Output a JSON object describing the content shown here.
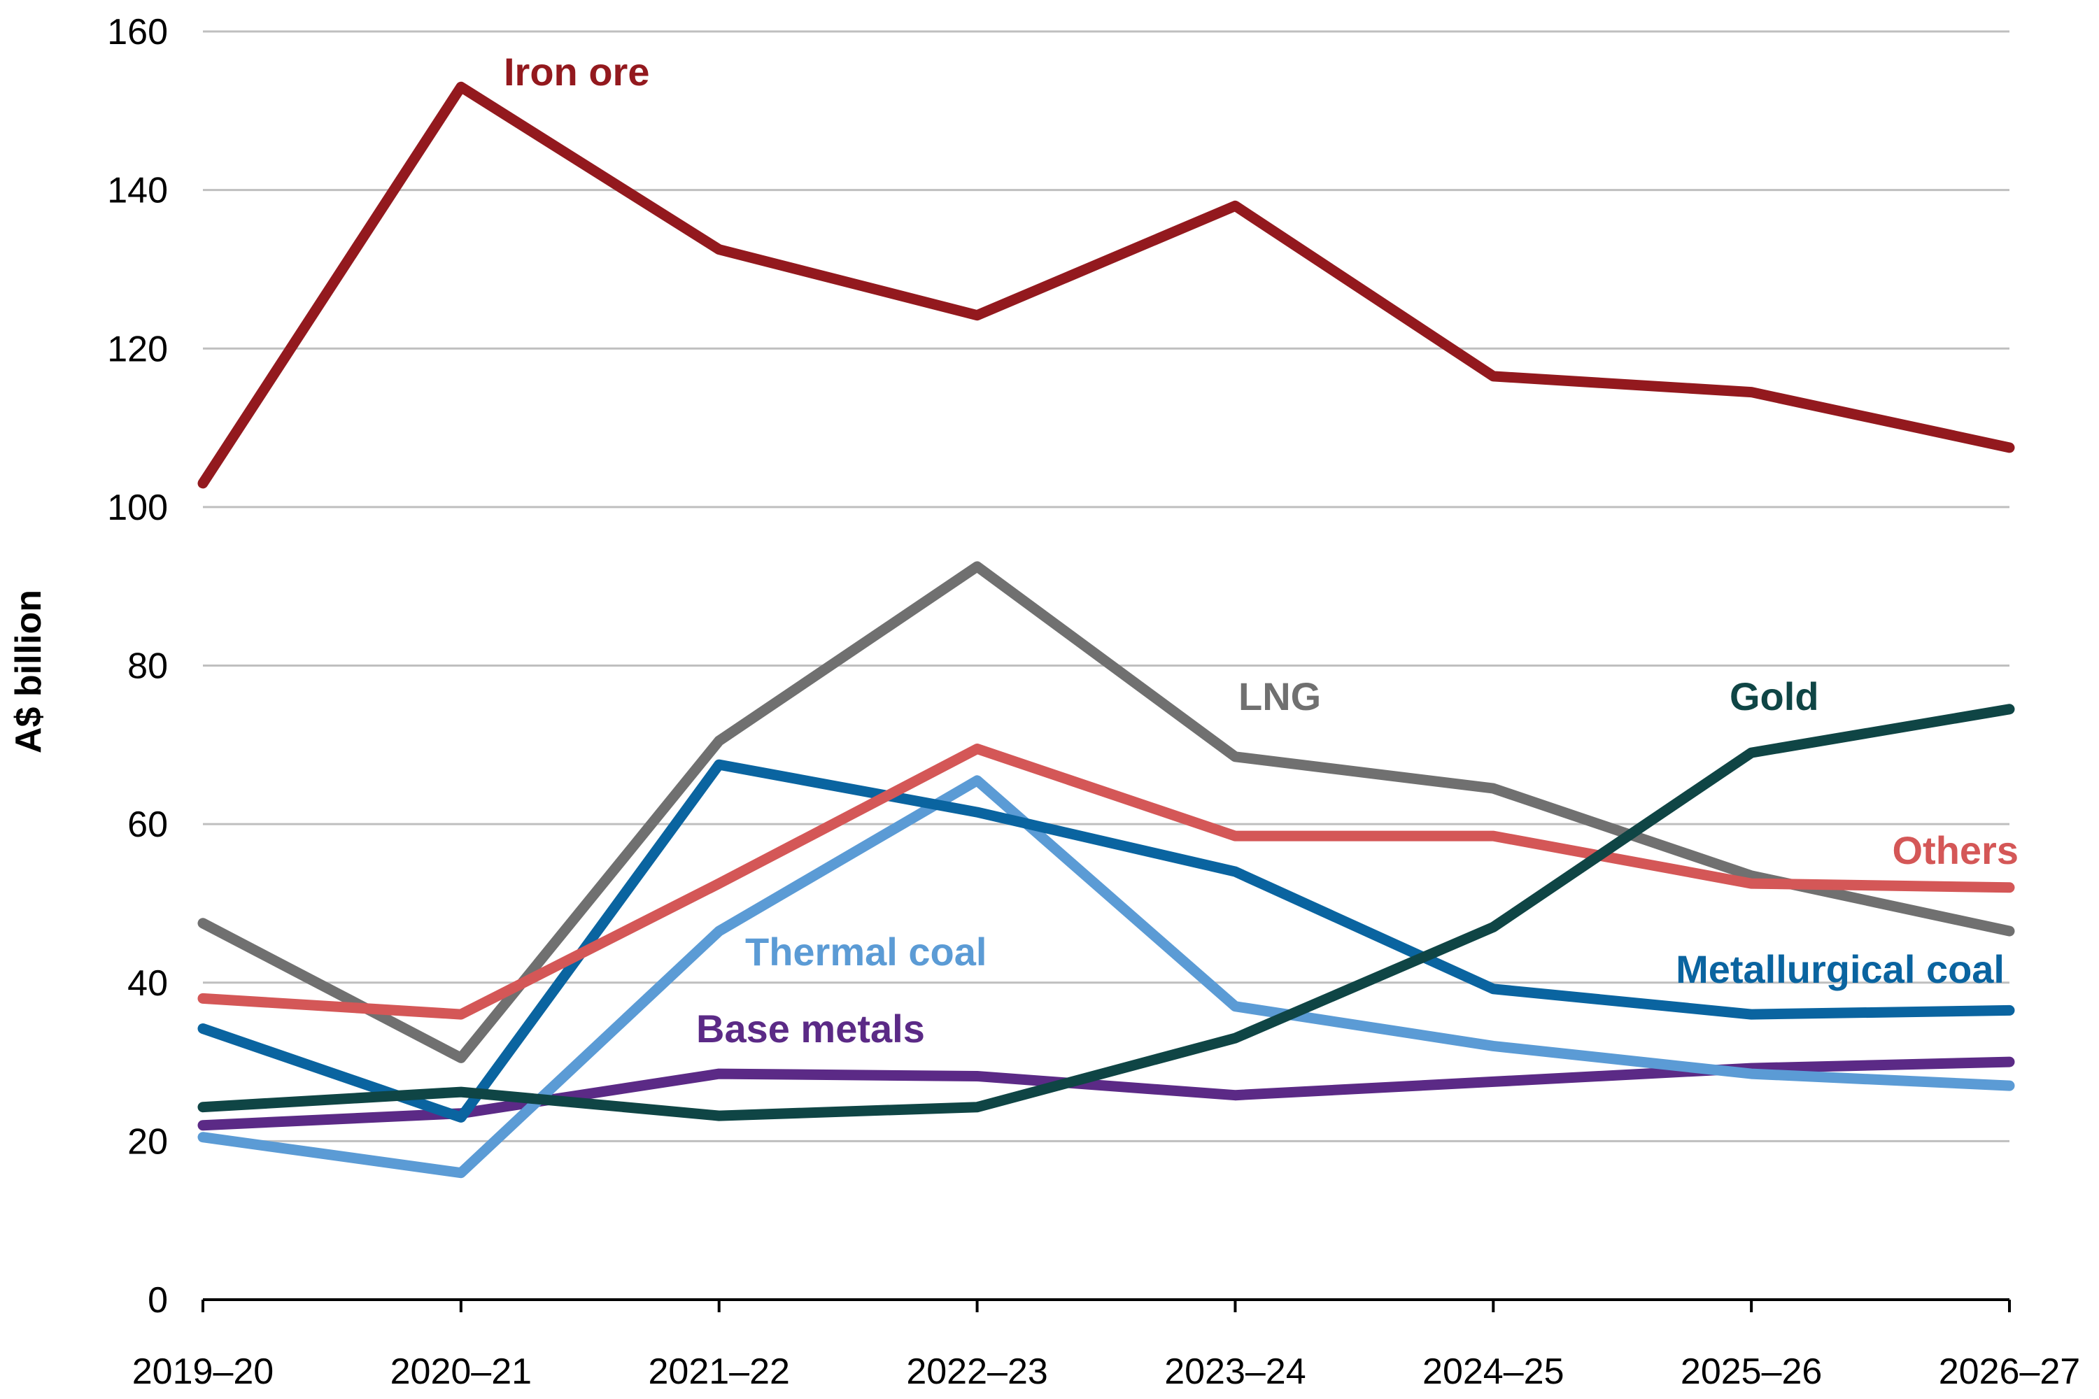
{
  "chart_data": {
    "type": "line",
    "title": "",
    "xlabel": "",
    "ylabel": "A$ billion",
    "ylim": [
      0,
      160
    ],
    "yticks": [
      0,
      20,
      40,
      60,
      80,
      100,
      120,
      140,
      160
    ],
    "grid": true,
    "categories": [
      "2019–20",
      "2020–21",
      "2021–22",
      "2022–23",
      "2023–24",
      "2024–25",
      "2025–26",
      "2026–27"
    ],
    "series": [
      {
        "name": "LNG",
        "color": "#707070",
        "values": [
          47.5,
          30.5,
          70.5,
          92.5,
          68.5,
          64.5,
          53.5,
          46.5
        ]
      },
      {
        "name": "Base metals",
        "color": "#5b2a86",
        "values": [
          22,
          23.5,
          28.5,
          28.2,
          25.8,
          27.5,
          29.2,
          30
        ]
      },
      {
        "name": "Thermal coal",
        "color": "#5b9bd5",
        "values": [
          20.5,
          16,
          46.5,
          65.5,
          37,
          32,
          28.5,
          27
        ]
      },
      {
        "name": "Metallurgical coal",
        "color": "#0a64a0",
        "values": [
          34.2,
          23,
          67.5,
          61.5,
          54,
          39.2,
          36,
          36.5
        ]
      },
      {
        "name": "Others",
        "color": "#d45757",
        "values": [
          38,
          36,
          52.5,
          69.5,
          58.5,
          58.5,
          52.5,
          52
        ]
      },
      {
        "name": "Gold",
        "color": "#0f4545",
        "values": [
          24.3,
          26.2,
          23.2,
          24.3,
          33,
          47,
          69,
          74.5
        ]
      },
      {
        "name": "Iron ore",
        "color": "#93191e",
        "values": [
          103,
          153,
          132.5,
          124.2,
          138,
          116.5,
          114.5,
          107.5
        ]
      }
    ]
  }
}
